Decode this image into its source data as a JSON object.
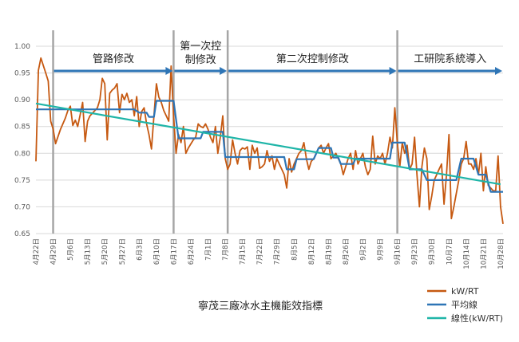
{
  "chart_data": {
    "type": "line",
    "title": "寧茂三廠冰水主機能效指標",
    "xlabel": "",
    "ylabel": "",
    "ylim": [
      0.65,
      1.0
    ],
    "y_ticks": [
      "0.65",
      "0.70",
      "0.75",
      "0.80",
      "0.85",
      "0.90",
      "0.95",
      "1.00"
    ],
    "x_tick_labels": [
      "4月22日",
      "4月29日",
      "5月6日",
      "5月13日",
      "5月20日",
      "5月27日",
      "6月3日",
      "6月10日",
      "6月17日",
      "6月24日",
      "7月1日",
      "7月8日",
      "7月15日",
      "7月22日",
      "7月29日",
      "8月5日",
      "8月12日",
      "8月19日",
      "8月26日",
      "9月2日",
      "9月9日",
      "9月16日",
      "9月23日",
      "9月30日",
      "10月7日",
      "10月14日",
      "10月21日",
      "10月28日"
    ],
    "x_range": [
      "2024-04-22",
      "2024-10-29"
    ],
    "grid": true,
    "legend_position": "bottom-right",
    "phases": [
      {
        "label": "管路修改",
        "start": "2024-04-29",
        "end": "2024-06-17"
      },
      {
        "label": "第一次控制修改",
        "label_lines": [
          "第一次控",
          "制修改"
        ],
        "start": "2024-06-17",
        "end": "2024-07-09"
      },
      {
        "label": "第二次控制修改",
        "start": "2024-07-09",
        "end": "2024-09-16"
      },
      {
        "label": "工研院系統導入",
        "start": "2024-09-16",
        "end": "2024-10-29"
      }
    ],
    "phase_dividers": [
      "2024-04-29",
      "2024-06-17",
      "2024-07-09",
      "2024-09-16"
    ],
    "series": [
      {
        "name": "kW/RT",
        "color": "#C65911",
        "points": [
          [
            "2024-04-22",
            0.785
          ],
          [
            "2024-04-23",
            0.955
          ],
          [
            "2024-04-24",
            0.978
          ],
          [
            "2024-04-26",
            0.95
          ],
          [
            "2024-04-27",
            0.935
          ],
          [
            "2024-04-28",
            0.86
          ],
          [
            "2024-04-29",
            0.845
          ],
          [
            "2024-04-30",
            0.818
          ],
          [
            "2024-05-02",
            0.845
          ],
          [
            "2024-05-04",
            0.866
          ],
          [
            "2024-05-05",
            0.88
          ],
          [
            "2024-05-06",
            0.888
          ],
          [
            "2024-05-07",
            0.852
          ],
          [
            "2024-05-08",
            0.862
          ],
          [
            "2024-05-09",
            0.85
          ],
          [
            "2024-05-10",
            0.872
          ],
          [
            "2024-05-11",
            0.895
          ],
          [
            "2024-05-12",
            0.822
          ],
          [
            "2024-05-13",
            0.86
          ],
          [
            "2024-05-14",
            0.87
          ],
          [
            "2024-05-15",
            0.875
          ],
          [
            "2024-05-16",
            0.88
          ],
          [
            "2024-05-17",
            0.885
          ],
          [
            "2024-05-18",
            0.9
          ],
          [
            "2024-05-19",
            0.94
          ],
          [
            "2024-05-20",
            0.93
          ],
          [
            "2024-05-21",
            0.825
          ],
          [
            "2024-05-22",
            0.912
          ],
          [
            "2024-05-23",
            0.918
          ],
          [
            "2024-05-24",
            0.922
          ],
          [
            "2024-05-25",
            0.93
          ],
          [
            "2024-05-26",
            0.876
          ],
          [
            "2024-05-27",
            0.91
          ],
          [
            "2024-05-28",
            0.9
          ],
          [
            "2024-05-29",
            0.912
          ],
          [
            "2024-05-30",
            0.895
          ],
          [
            "2024-05-31",
            0.9
          ],
          [
            "2024-06-01",
            0.87
          ],
          [
            "2024-06-02",
            0.906
          ],
          [
            "2024-06-03",
            0.85
          ],
          [
            "2024-06-04",
            0.878
          ],
          [
            "2024-06-05",
            0.885
          ],
          [
            "2024-06-06",
            0.855
          ],
          [
            "2024-06-07",
            0.835
          ],
          [
            "2024-06-08",
            0.808
          ],
          [
            "2024-06-09",
            0.87
          ],
          [
            "2024-06-10",
            0.93
          ],
          [
            "2024-06-11",
            0.905
          ],
          [
            "2024-06-12",
            0.895
          ],
          [
            "2024-06-13",
            0.88
          ],
          [
            "2024-06-14",
            0.87
          ],
          [
            "2024-06-15",
            0.86
          ],
          [
            "2024-06-16",
            0.963
          ],
          [
            "2024-06-17",
            0.87
          ],
          [
            "2024-06-18",
            0.8
          ],
          [
            "2024-06-19",
            0.835
          ],
          [
            "2024-06-20",
            0.82
          ],
          [
            "2024-06-21",
            0.85
          ],
          [
            "2024-06-22",
            0.8
          ],
          [
            "2024-06-23",
            0.81
          ],
          [
            "2024-06-25",
            0.825
          ],
          [
            "2024-06-26",
            0.83
          ],
          [
            "2024-06-27",
            0.855
          ],
          [
            "2024-06-28",
            0.85
          ],
          [
            "2024-06-29",
            0.848
          ],
          [
            "2024-06-30",
            0.855
          ],
          [
            "2024-07-01",
            0.845
          ],
          [
            "2024-07-02",
            0.83
          ],
          [
            "2024-07-03",
            0.82
          ],
          [
            "2024-07-04",
            0.85
          ],
          [
            "2024-07-05",
            0.8
          ],
          [
            "2024-07-06",
            0.83
          ],
          [
            "2024-07-07",
            0.87
          ],
          [
            "2024-07-08",
            0.79
          ],
          [
            "2024-07-09",
            0.77
          ],
          [
            "2024-07-10",
            0.78
          ],
          [
            "2024-07-11",
            0.825
          ],
          [
            "2024-07-12",
            0.8
          ],
          [
            "2024-07-13",
            0.78
          ],
          [
            "2024-07-14",
            0.805
          ],
          [
            "2024-07-15",
            0.81
          ],
          [
            "2024-07-16",
            0.808
          ],
          [
            "2024-07-17",
            0.812
          ],
          [
            "2024-07-18",
            0.77
          ],
          [
            "2024-07-19",
            0.815
          ],
          [
            "2024-07-20",
            0.8
          ],
          [
            "2024-07-21",
            0.81
          ],
          [
            "2024-07-22",
            0.772
          ],
          [
            "2024-07-23",
            0.775
          ],
          [
            "2024-07-24",
            0.78
          ],
          [
            "2024-07-25",
            0.805
          ],
          [
            "2024-07-26",
            0.785
          ],
          [
            "2024-07-27",
            0.795
          ],
          [
            "2024-07-28",
            0.77
          ],
          [
            "2024-07-29",
            0.79
          ],
          [
            "2024-07-30",
            0.78
          ],
          [
            "2024-07-31",
            0.77
          ],
          [
            "2024-08-01",
            0.76
          ],
          [
            "2024-08-02",
            0.735
          ],
          [
            "2024-08-03",
            0.79
          ],
          [
            "2024-08-04",
            0.765
          ],
          [
            "2024-08-05",
            0.78
          ],
          [
            "2024-08-06",
            0.79
          ],
          [
            "2024-08-07",
            0.8
          ],
          [
            "2024-08-08",
            0.805
          ],
          [
            "2024-08-09",
            0.82
          ],
          [
            "2024-08-10",
            0.79
          ],
          [
            "2024-08-11",
            0.77
          ],
          [
            "2024-08-12",
            0.785
          ],
          [
            "2024-08-13",
            0.79
          ],
          [
            "2024-08-14",
            0.8
          ],
          [
            "2024-08-15",
            0.81
          ],
          [
            "2024-08-16",
            0.815
          ],
          [
            "2024-08-17",
            0.8
          ],
          [
            "2024-08-18",
            0.81
          ],
          [
            "2024-08-19",
            0.818
          ],
          [
            "2024-08-20",
            0.79
          ],
          [
            "2024-08-21",
            0.795
          ],
          [
            "2024-08-22",
            0.8
          ],
          [
            "2024-08-23",
            0.79
          ],
          [
            "2024-08-24",
            0.78
          ],
          [
            "2024-08-25",
            0.76
          ],
          [
            "2024-08-26",
            0.775
          ],
          [
            "2024-08-27",
            0.79
          ],
          [
            "2024-08-28",
            0.8
          ],
          [
            "2024-08-29",
            0.77
          ],
          [
            "2024-08-30",
            0.805
          ],
          [
            "2024-08-31",
            0.78
          ],
          [
            "2024-09-01",
            0.79
          ],
          [
            "2024-09-02",
            0.8
          ],
          [
            "2024-09-03",
            0.775
          ],
          [
            "2024-09-04",
            0.76
          ],
          [
            "2024-09-05",
            0.77
          ],
          [
            "2024-09-06",
            0.832
          ],
          [
            "2024-09-07",
            0.78
          ],
          [
            "2024-09-08",
            0.795
          ],
          [
            "2024-09-09",
            0.79
          ],
          [
            "2024-09-10",
            0.8
          ],
          [
            "2024-09-11",
            0.78
          ],
          [
            "2024-09-12",
            0.8
          ],
          [
            "2024-09-13",
            0.83
          ],
          [
            "2024-09-14",
            0.81
          ],
          [
            "2024-09-15",
            0.885
          ],
          [
            "2024-09-16",
            0.82
          ],
          [
            "2024-09-17",
            0.775
          ],
          [
            "2024-09-18",
            0.82
          ],
          [
            "2024-09-19",
            0.8
          ],
          [
            "2024-09-20",
            0.815
          ],
          [
            "2024-09-21",
            0.77
          ],
          [
            "2024-09-22",
            0.78
          ],
          [
            "2024-09-23",
            0.83
          ],
          [
            "2024-09-24",
            0.76
          ],
          [
            "2024-09-25",
            0.7
          ],
          [
            "2024-09-26",
            0.775
          ],
          [
            "2024-09-27",
            0.81
          ],
          [
            "2024-09-28",
            0.79
          ],
          [
            "2024-09-29",
            0.695
          ],
          [
            "2024-09-30",
            0.72
          ],
          [
            "2024-10-01",
            0.75
          ],
          [
            "2024-10-02",
            0.76
          ],
          [
            "2024-10-03",
            0.77
          ],
          [
            "2024-10-04",
            0.78
          ],
          [
            "2024-10-05",
            0.705
          ],
          [
            "2024-10-06",
            0.76
          ],
          [
            "2024-10-07",
            0.835
          ],
          [
            "2024-10-08",
            0.678
          ],
          [
            "2024-10-09",
            0.7
          ],
          [
            "2024-10-10",
            0.725
          ],
          [
            "2024-10-11",
            0.75
          ],
          [
            "2024-10-12",
            0.78
          ],
          [
            "2024-10-13",
            0.79
          ],
          [
            "2024-10-14",
            0.822
          ],
          [
            "2024-10-15",
            0.78
          ],
          [
            "2024-10-16",
            0.78
          ],
          [
            "2024-10-17",
            0.77
          ],
          [
            "2024-10-18",
            0.79
          ],
          [
            "2024-10-19",
            0.76
          ],
          [
            "2024-10-20",
            0.8
          ],
          [
            "2024-10-21",
            0.73
          ],
          [
            "2024-10-22",
            0.775
          ],
          [
            "2024-10-23",
            0.74
          ],
          [
            "2024-10-24",
            0.735
          ],
          [
            "2024-10-25",
            0.73
          ],
          [
            "2024-10-26",
            0.73
          ],
          [
            "2024-10-27",
            0.795
          ],
          [
            "2024-10-28",
            0.7
          ],
          [
            "2024-10-29",
            0.668
          ]
        ]
      },
      {
        "name": "平均線",
        "color": "#2E75B6",
        "points": [
          [
            "2024-04-22",
            0.882
          ],
          [
            "2024-05-31",
            0.882
          ],
          [
            "2024-06-01",
            0.882
          ],
          [
            "2024-06-03",
            0.876
          ],
          [
            "2024-06-06",
            0.876
          ],
          [
            "2024-06-07",
            0.868
          ],
          [
            "2024-06-09",
            0.868
          ],
          [
            "2024-06-10",
            0.898
          ],
          [
            "2024-06-17",
            0.898
          ],
          [
            "2024-06-19",
            0.828
          ],
          [
            "2024-06-28",
            0.828
          ],
          [
            "2024-06-29",
            0.84
          ],
          [
            "2024-07-07",
            0.84
          ],
          [
            "2024-07-08",
            0.793
          ],
          [
            "2024-08-01",
            0.793
          ],
          [
            "2024-08-02",
            0.77
          ],
          [
            "2024-08-05",
            0.77
          ],
          [
            "2024-08-06",
            0.789
          ],
          [
            "2024-08-13",
            0.789
          ],
          [
            "2024-08-15",
            0.81
          ],
          [
            "2024-08-20",
            0.81
          ],
          [
            "2024-08-21",
            0.792
          ],
          [
            "2024-08-23",
            0.792
          ],
          [
            "2024-08-24",
            0.78
          ],
          [
            "2024-08-29",
            0.78
          ],
          [
            "2024-08-30",
            0.79
          ],
          [
            "2024-09-13",
            0.79
          ],
          [
            "2024-09-14",
            0.82
          ],
          [
            "2024-09-19",
            0.82
          ],
          [
            "2024-09-21",
            0.77
          ],
          [
            "2024-09-26",
            0.77
          ],
          [
            "2024-09-28",
            0.75
          ],
          [
            "2024-10-10",
            0.75
          ],
          [
            "2024-10-12",
            0.79
          ],
          [
            "2024-10-17",
            0.79
          ],
          [
            "2024-10-19",
            0.76
          ],
          [
            "2024-10-22",
            0.76
          ],
          [
            "2024-10-24",
            0.728
          ],
          [
            "2024-10-29",
            0.728
          ]
        ]
      },
      {
        "name": "線性(kW/RT)",
        "color": "#1FB5A8",
        "points": [
          [
            "2024-04-22",
            0.893
          ],
          [
            "2024-10-28",
            0.742
          ]
        ]
      }
    ]
  }
}
